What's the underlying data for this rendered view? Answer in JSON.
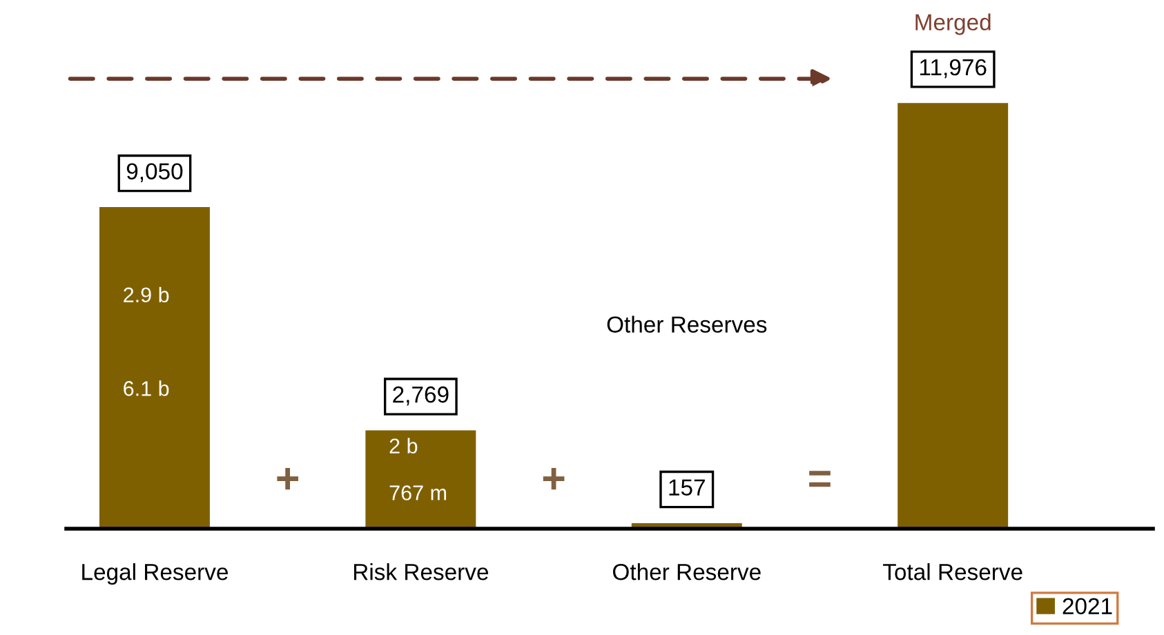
{
  "chart_data": {
    "type": "bar",
    "categories": [
      "Legal Reserve",
      "Risk Reserve",
      "Other Reserve",
      "Total Reserve"
    ],
    "series": [
      {
        "name": "2021",
        "color": "#7f6000",
        "values": [
          9050,
          2769,
          157,
          11976
        ],
        "value_labels": [
          "9,050",
          "2,769",
          "157",
          "11,976"
        ]
      }
    ],
    "annotations": [
      "2.9 b",
      "6.1 b",
      "2 b",
      "767 m",
      "Other Reserves",
      "Merged",
      "+",
      "+",
      "="
    ],
    "legend": "bottom right",
    "grid": false
  }
}
